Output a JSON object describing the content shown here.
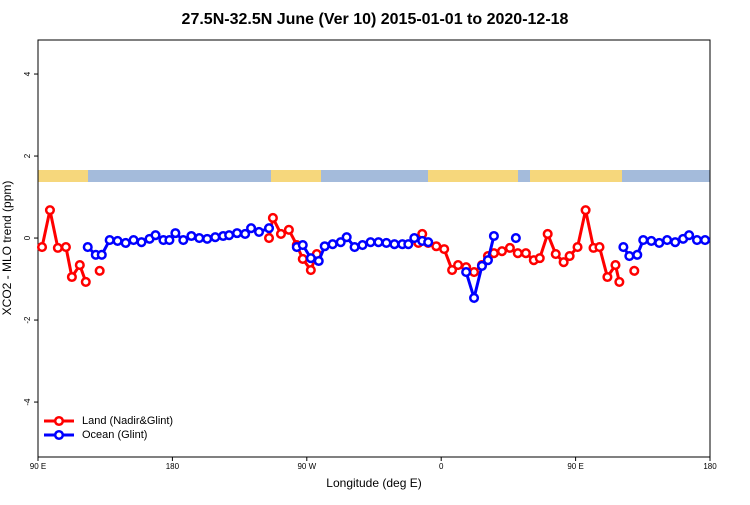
{
  "chart_data": {
    "type": "line",
    "title": "27.5N-32.5N June (Ver 10)   2015-01-01 to 2020-12-18",
    "x_label": "Longitude (deg E)",
    "y_label": "XCO2 - MLO trend (ppm)",
    "xlim": [
      90,
      540
    ],
    "xticks": [
      {
        "value": 90,
        "label": "90 E"
      },
      180,
      {
        "value": 270,
        "label": "90 W"
      },
      {
        "value": 360,
        "label": "0"
      },
      {
        "value": 450,
        "label": "90 E"
      },
      {
        "value": 540,
        "label": "180"
      }
    ],
    "ylim": [
      -5.34,
      4.83
    ],
    "yticks": [
      -4,
      -2,
      0,
      2,
      4
    ],
    "legend": "bottomleft",
    "series": [
      {
        "name": "Land (Nadir&Glint)",
        "color": "#ff0000",
        "x": [
          92.7,
          98,
          103.3,
          108.7,
          112.7,
          118,
          122,
          125,
          131.3,
          200,
          244.7,
          247.3,
          252.7,
          258,
          263.3,
          267.3,
          272.7,
          276.7,
          320,
          344.7,
          347.3,
          351.3,
          356.7,
          362,
          367.3,
          371.3,
          376.7,
          382,
          387.3,
          391.3,
          395.3,
          400.7,
          406,
          411.3,
          416.7,
          422,
          426,
          431.3,
          436.7,
          442,
          446,
          451.3,
          456.7,
          462,
          466,
          471.3,
          476.7,
          479.3,
          482,
          489.3
        ],
        "values": [
          -0.22,
          0.68,
          -0.24,
          -0.22,
          -0.95,
          -0.66,
          -1.07,
          null,
          -0.8,
          null,
          0,
          0.49,
          0.1,
          0.2,
          -0.17,
          -0.51,
          -0.78,
          -0.39,
          null,
          -0.12,
          0.1,
          -0.12,
          -0.2,
          -0.27,
          -0.78,
          -0.66,
          -0.71,
          -0.83,
          -0.66,
          -0.44,
          -0.37,
          -0.32,
          -0.24,
          -0.37,
          -0.37,
          -0.54,
          -0.49,
          0.1,
          -0.39,
          -0.59,
          -0.44,
          -0.22,
          0.68,
          -0.24,
          -0.22,
          -0.95,
          -0.66,
          -1.07,
          null,
          -0.8
        ]
      },
      {
        "name": "Ocean (Glint)",
        "color": "#0000ff",
        "x": [
          123.3,
          128.7,
          132.7,
          138,
          143.3,
          148.7,
          154,
          159.3,
          164.7,
          168.7,
          174,
          178,
          182,
          187.3,
          192.7,
          198,
          203.3,
          208.7,
          214,
          218,
          223.3,
          228.7,
          232.7,
          238,
          244.7,
          250,
          263.3,
          267.3,
          272.7,
          278,
          282,
          287.3,
          292.7,
          296.7,
          302,
          307.3,
          312.7,
          318,
          323.3,
          328.7,
          334,
          338,
          342,
          347.3,
          351.3,
          360,
          376.7,
          382,
          387.3,
          391.3,
          395.3,
          400,
          410,
          420,
          482,
          486,
          491.3,
          495.3,
          500.7,
          506,
          511.3,
          516.7,
          522,
          526,
          531.3,
          536.7
        ],
        "values": [
          -0.22,
          -0.41,
          -0.41,
          -0.05,
          -0.07,
          -0.12,
          -0.05,
          -0.1,
          -0.02,
          0.07,
          -0.05,
          -0.05,
          0.12,
          -0.05,
          0.05,
          0,
          -0.02,
          0.02,
          0.05,
          0.07,
          0.12,
          0.1,
          0.24,
          0.15,
          0.24,
          null,
          -0.22,
          -0.17,
          -0.49,
          -0.56,
          -0.2,
          -0.15,
          -0.1,
          0.02,
          -0.22,
          -0.17,
          -0.1,
          -0.1,
          -0.12,
          -0.15,
          -0.15,
          -0.15,
          0,
          -0.07,
          -0.1,
          null,
          -0.83,
          -1.46,
          -0.68,
          -0.54,
          0.05,
          null,
          0,
          null,
          -0.22,
          -0.44,
          -0.41,
          -0.05,
          -0.07,
          -0.12,
          -0.05,
          -0.1,
          -0.02,
          0.07,
          -0.05,
          -0.05
        ]
      }
    ]
  }
}
